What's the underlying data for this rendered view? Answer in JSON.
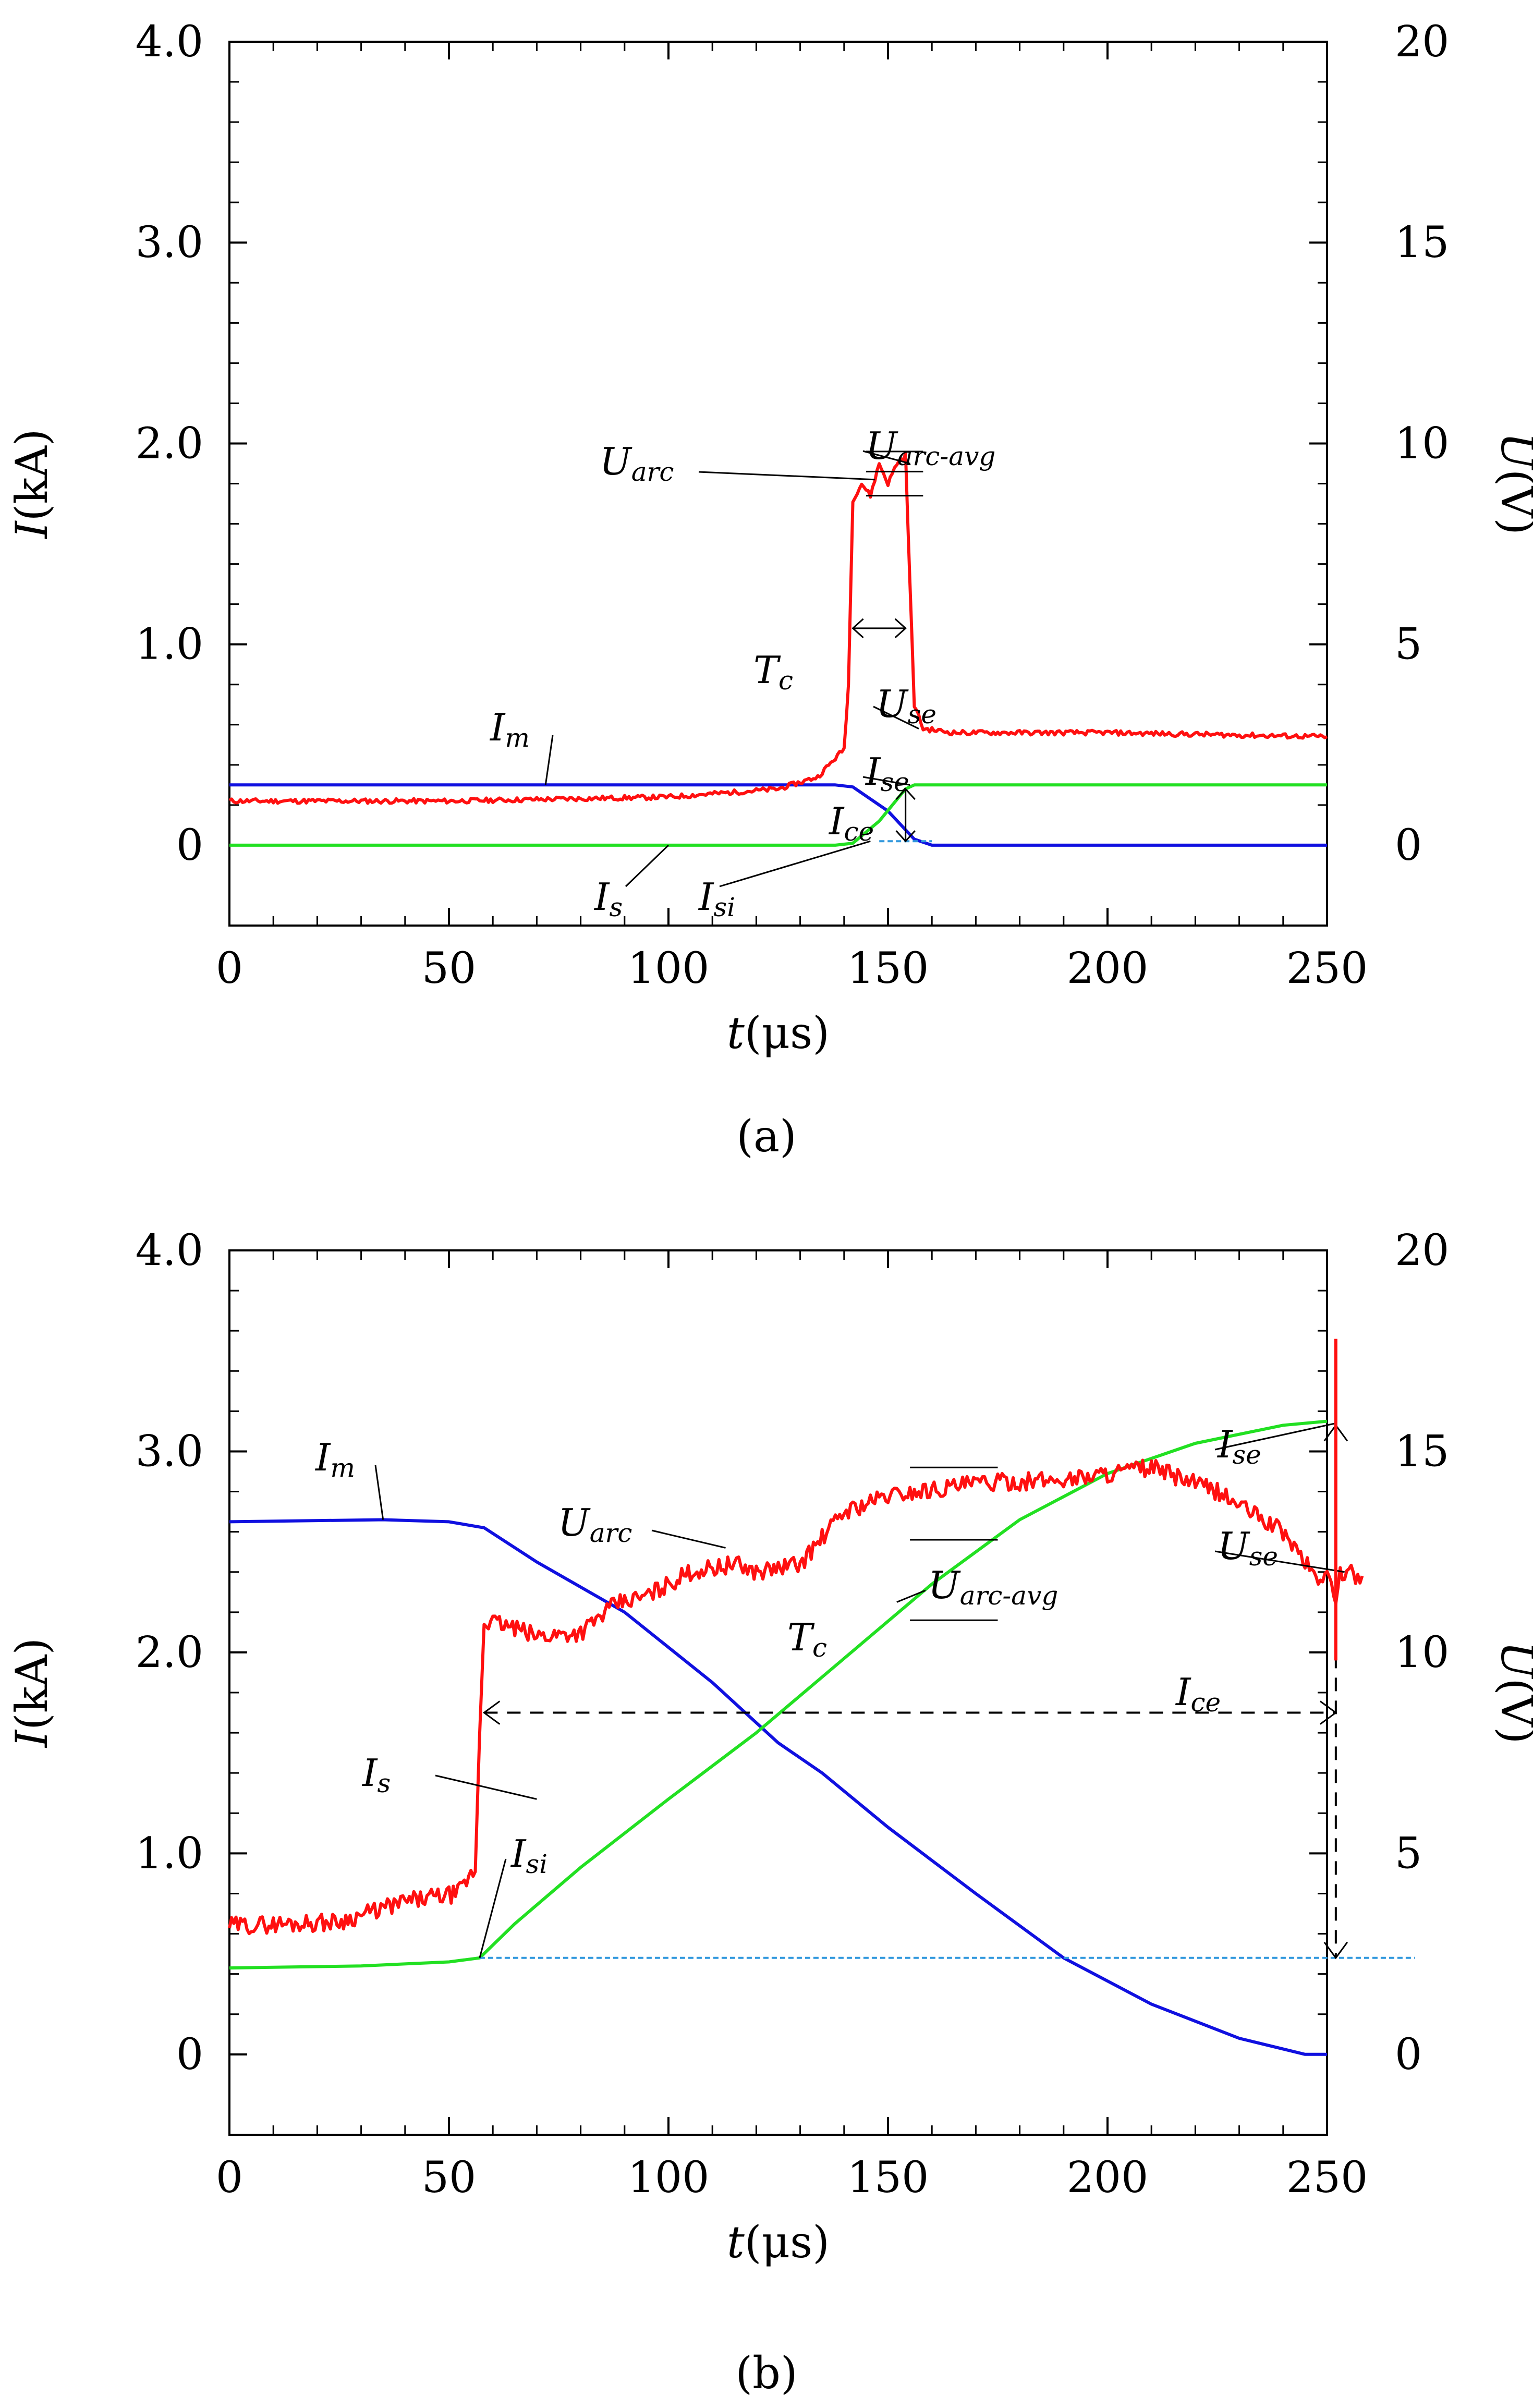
{
  "figure": {
    "caption_a": "(a)",
    "caption_b": "(b)"
  },
  "colors": {
    "Im": "#1010e0",
    "Is": "#22e022",
    "U": "#ff1010",
    "baseline": "#3399dd",
    "axis": "#000000"
  },
  "chart_data": [
    {
      "id": "a",
      "type": "line",
      "title": "",
      "caption": "(a)",
      "xlabel": "t(μs)",
      "xlabel_main": "t",
      "xlabel_unit": "(μs)",
      "ylabel_left": "I(kA)",
      "ylabel_left_main": "I",
      "ylabel_left_unit": "(kA)",
      "ylabel_right": "U(V)",
      "ylabel_right_main": "U",
      "ylabel_right_unit": "(V)",
      "xlim": [
        0,
        250
      ],
      "ylim_left": [
        -0.4,
        4.0
      ],
      "ylim_right": [
        -2,
        20
      ],
      "x_ticks": [
        0,
        50,
        100,
        150,
        200,
        250
      ],
      "x_tick_labels": [
        "0",
        "50",
        "100",
        "150",
        "200",
        "250"
      ],
      "y_left_ticks": [
        0,
        1,
        2,
        3,
        4
      ],
      "y_left_tick_labels": [
        "0",
        "1.0",
        "2.0",
        "3.0",
        "4.0"
      ],
      "y_right_ticks": [
        0,
        5,
        10,
        15,
        20
      ],
      "y_right_tick_labels": [
        "0",
        "5",
        "10",
        "15",
        "20"
      ],
      "series": [
        {
          "name": "Im",
          "axis": "left",
          "points": [
            [
              0,
              0.3
            ],
            [
              138,
              0.3
            ],
            [
              142,
              0.29
            ],
            [
              150,
              0.17
            ],
            [
              156,
              0.03
            ],
            [
              160,
              0.0
            ],
            [
              250,
              0.0
            ]
          ]
        },
        {
          "name": "Is",
          "axis": "left",
          "points": [
            [
              0,
              0.0
            ],
            [
              138,
              0.0
            ],
            [
              142,
              0.01
            ],
            [
              148,
              0.12
            ],
            [
              154,
              0.28
            ],
            [
              156,
              0.3
            ],
            [
              250,
              0.3
            ]
          ]
        },
        {
          "name": "U",
          "axis": "right",
          "noise": 0.06,
          "points": [
            [
              0,
              1.1
            ],
            [
              50,
              1.1
            ],
            [
              100,
              1.2
            ],
            [
              125,
              1.4
            ],
            [
              134,
              1.7
            ],
            [
              140,
              2.4
            ],
            [
              141,
              4
            ],
            [
              142,
              8.6
            ],
            [
              144,
              9.0
            ],
            [
              146,
              8.7
            ],
            [
              148,
              9.5
            ],
            [
              150,
              9.0
            ],
            [
              152,
              9.5
            ],
            [
              154,
              9.7
            ],
            [
              155,
              6.5
            ],
            [
              156,
              3.5
            ],
            [
              158,
              2.9
            ],
            [
              165,
              2.8
            ],
            [
              200,
              2.8
            ],
            [
              250,
              2.7
            ]
          ]
        },
        {
          "name": "Isi-baseline",
          "axis": "left",
          "dashed": true,
          "points": [
            [
              148,
              0.02
            ],
            [
              160,
              0.02
            ]
          ]
        }
      ],
      "annotations": [
        {
          "main": "U",
          "sub": "arc"
        },
        {
          "main": "U",
          "sub": "arc-avg"
        },
        {
          "main": "T",
          "sub": "c"
        },
        {
          "main": "U",
          "sub": "se"
        },
        {
          "main": "I",
          "sub": "m"
        },
        {
          "main": "I",
          "sub": "se"
        },
        {
          "main": "I",
          "sub": "ce"
        },
        {
          "main": "I",
          "sub": "s"
        },
        {
          "main": "I",
          "sub": "si"
        }
      ]
    },
    {
      "id": "b",
      "type": "line",
      "title": "",
      "caption": "(b)",
      "xlabel": "t(μs)",
      "xlabel_main": "t",
      "xlabel_unit": "(μs)",
      "ylabel_left": "I(kA)",
      "ylabel_left_main": "I",
      "ylabel_left_unit": "(kA)",
      "ylabel_right": "U(V)",
      "ylabel_right_main": "U",
      "ylabel_right_unit": "(V)",
      "xlim": [
        0,
        250
      ],
      "ylim_left": [
        -0.4,
        4.0
      ],
      "ylim_right": [
        -2,
        20
      ],
      "x_ticks": [
        0,
        50,
        100,
        150,
        200,
        250
      ],
      "x_tick_labels": [
        "0",
        "50",
        "100",
        "150",
        "200",
        "250"
      ],
      "y_left_ticks": [
        0,
        1,
        2,
        3,
        4
      ],
      "y_left_tick_labels": [
        "0",
        "1.0",
        "2.0",
        "3.0",
        "4.0"
      ],
      "y_right_ticks": [
        0,
        5,
        10,
        15,
        20
      ],
      "y_right_tick_labels": [
        "0",
        "5",
        "10",
        "15",
        "20"
      ],
      "series": [
        {
          "name": "Im",
          "axis": "left",
          "points": [
            [
              0,
              2.65
            ],
            [
              35,
              2.66
            ],
            [
              50,
              2.65
            ],
            [
              58,
              2.62
            ],
            [
              70,
              2.45
            ],
            [
              90,
              2.2
            ],
            [
              110,
              1.85
            ],
            [
              125,
              1.55
            ],
            [
              135,
              1.4
            ],
            [
              150,
              1.13
            ],
            [
              170,
              0.8
            ],
            [
              190,
              0.48
            ],
            [
              210,
              0.25
            ],
            [
              230,
              0.08
            ],
            [
              245,
              0.0
            ],
            [
              250,
              0.0
            ]
          ]
        },
        {
          "name": "Is",
          "axis": "left",
          "points": [
            [
              0,
              0.43
            ],
            [
              30,
              0.44
            ],
            [
              50,
              0.46
            ],
            [
              57,
              0.48
            ],
            [
              65,
              0.65
            ],
            [
              80,
              0.93
            ],
            [
              100,
              1.27
            ],
            [
              120,
              1.6
            ],
            [
              140,
              1.97
            ],
            [
              160,
              2.34
            ],
            [
              180,
              2.66
            ],
            [
              200,
              2.89
            ],
            [
              220,
              3.04
            ],
            [
              240,
              3.13
            ],
            [
              250,
              3.15
            ]
          ]
        },
        {
          "name": "U",
          "axis": "right",
          "noise": 0.22,
          "points": [
            [
              0,
              3.2
            ],
            [
              25,
              3.3
            ],
            [
              40,
              3.8
            ],
            [
              52,
              4.0
            ],
            [
              56,
              4.6
            ],
            [
              57,
              8
            ],
            [
              58,
              10.8
            ],
            [
              62,
              10.7
            ],
            [
              70,
              10.4
            ],
            [
              80,
              10.5
            ],
            [
              88,
              11.2
            ],
            [
              95,
              11.4
            ],
            [
              105,
              12.0
            ],
            [
              115,
              12.2
            ],
            [
              120,
              12.0
            ],
            [
              130,
              12.2
            ],
            [
              140,
              13.5
            ],
            [
              150,
              13.9
            ],
            [
              170,
              14.2
            ],
            [
              190,
              14.3
            ],
            [
              210,
              14.6
            ],
            [
              225,
              14.0
            ],
            [
              240,
              13.0
            ],
            [
              248,
              11.8
            ],
            [
              252,
              11.2
            ],
            [
              253,
              12.0
            ],
            [
              258,
              11.9
            ],
            [
              250,
              12.0
            ]
          ]
        },
        {
          "name": "Isi-baseline",
          "axis": "left",
          "dashed": true,
          "points": [
            [
              57,
              0.48
            ],
            [
              270,
              0.48
            ]
          ]
        }
      ],
      "annotations": [
        {
          "main": "I",
          "sub": "m"
        },
        {
          "main": "U",
          "sub": "arc"
        },
        {
          "main": "U",
          "sub": "arc-avg"
        },
        {
          "main": "I",
          "sub": "se"
        },
        {
          "main": "U",
          "sub": "se"
        },
        {
          "main": "I",
          "sub": "ce"
        },
        {
          "main": "T",
          "sub": "c"
        },
        {
          "main": "I",
          "sub": "s"
        },
        {
          "main": "I",
          "sub": "si"
        }
      ]
    }
  ]
}
